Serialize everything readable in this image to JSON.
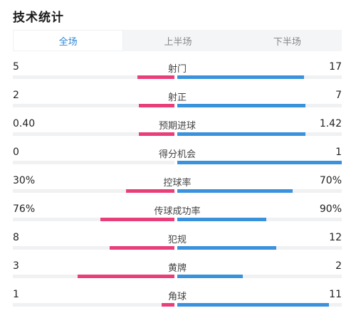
{
  "title": "技术统计",
  "tabs": [
    {
      "label": "全场",
      "active": true
    },
    {
      "label": "上半场",
      "active": false
    },
    {
      "label": "下半场",
      "active": false
    }
  ],
  "colors": {
    "home": "#e83e7a",
    "away": "#3a92dc",
    "accent": "#2f86d6"
  },
  "stats": [
    {
      "name": "射门",
      "home": "5",
      "away": "17",
      "home_fill": 0.23,
      "away_fill": 0.77
    },
    {
      "name": "射正",
      "home": "2",
      "away": "7",
      "home_fill": 0.22,
      "away_fill": 0.78
    },
    {
      "name": "预期进球",
      "home": "0.40",
      "away": "1.42",
      "home_fill": 0.22,
      "away_fill": 0.78
    },
    {
      "name": "得分机会",
      "home": "0",
      "away": "1",
      "home_fill": 0.0,
      "away_fill": 1.0
    },
    {
      "name": "控球率",
      "home": "30%",
      "away": "70%",
      "home_fill": 0.3,
      "away_fill": 0.7
    },
    {
      "name": "传球成功率",
      "home": "76%",
      "away": "90%",
      "home_fill": 0.46,
      "away_fill": 0.54
    },
    {
      "name": "犯规",
      "home": "8",
      "away": "12",
      "home_fill": 0.4,
      "away_fill": 0.6
    },
    {
      "name": "黄牌",
      "home": "3",
      "away": "2",
      "home_fill": 0.6,
      "away_fill": 0.4
    },
    {
      "name": "角球",
      "home": "1",
      "away": "11",
      "home_fill": 0.08,
      "away_fill": 0.92
    }
  ]
}
